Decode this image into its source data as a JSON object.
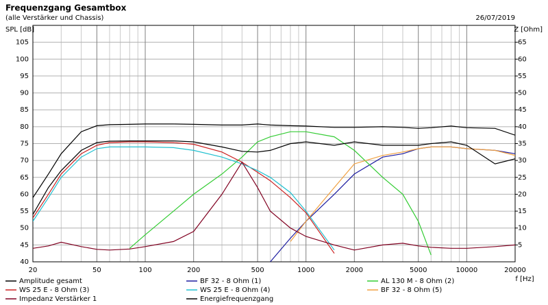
{
  "chart_data": {
    "type": "line",
    "title": "Frequenzgang Gesamtbox",
    "subtitle": "(alle Verstärker und Chassis)",
    "date": "26/07/2019",
    "y_label": "SPL [dB]",
    "y2_label": "Z [Ohm]",
    "x_label": "f [Hz]",
    "log_x": true,
    "grid": true,
    "xlim": [
      20,
      20000
    ],
    "xticks": [
      20,
      50,
      100,
      200,
      500,
      1000,
      2000,
      5000,
      10000,
      20000
    ],
    "xgrid_minor": [
      30,
      40,
      60,
      70,
      80,
      90,
      300,
      400,
      600,
      700,
      800,
      900,
      3000,
      4000,
      6000,
      7000,
      8000,
      9000
    ],
    "ylim": [
      40,
      110
    ],
    "yticks": [
      40,
      45,
      50,
      55,
      60,
      65,
      70,
      75,
      80,
      85,
      90,
      95,
      100,
      105
    ],
    "y2lim": [
      0,
      70
    ],
    "y2ticks": [
      5,
      10,
      15,
      20,
      25,
      30,
      35,
      40,
      45,
      50,
      55,
      60,
      65
    ],
    "x": [
      20,
      25,
      30,
      40,
      50,
      60,
      80,
      100,
      150,
      200,
      300,
      400,
      500,
      600,
      800,
      1000,
      1500,
      2000,
      3000,
      4000,
      5000,
      6000,
      8000,
      10000,
      15000,
      20000
    ],
    "series": [
      {
        "name": "Amplitude gesamt",
        "color": "#000000",
        "values": [
          59,
          66,
          72,
          78.5,
          80.3,
          80.6,
          80.7,
          80.8,
          80.8,
          80.7,
          80.5,
          80.5,
          80.8,
          80.5,
          80.3,
          80.2,
          79.8,
          79.8,
          80,
          79.8,
          79.5,
          79.7,
          80.2,
          79.7,
          79.5,
          77.5
        ]
      },
      {
        "name": "BF 32 - 8 Ohm (1)",
        "color": "#1c1ca0",
        "values": [
          null,
          null,
          null,
          null,
          null,
          null,
          null,
          null,
          null,
          null,
          null,
          null,
          null,
          40,
          47,
          52,
          60,
          66,
          71,
          72,
          73.5,
          74,
          74,
          73.5,
          73,
          72
        ]
      },
      {
        "name": "AL 130 M - 8 Ohm (2)",
        "color": "#33cc33",
        "values": [
          null,
          null,
          null,
          null,
          null,
          null,
          44,
          48,
          55,
          60,
          66,
          71,
          75.5,
          77,
          78.5,
          78.5,
          77,
          73,
          65,
          60,
          52,
          42,
          null,
          null,
          null,
          null
        ]
      },
      {
        "name": "WS 25 E - 8 Ohm (3)",
        "color": "#cc2020",
        "values": [
          53,
          60,
          66,
          72,
          74.5,
          75.3,
          75.5,
          75.5,
          75.3,
          74.8,
          72.5,
          69.5,
          66.5,
          64,
          59,
          54.5,
          42.5,
          null,
          null,
          null,
          null,
          null,
          null,
          null,
          null,
          null
        ]
      },
      {
        "name": "WS 25 E - 8 Ohm (4)",
        "color": "#20c0d0",
        "values": [
          52,
          59,
          65,
          71,
          73.5,
          74,
          74,
          74,
          73.8,
          73,
          71,
          69,
          67,
          65,
          60.5,
          55,
          43.5,
          null,
          null,
          null,
          null,
          null,
          null,
          null,
          null,
          null
        ]
      },
      {
        "name": "BF 32 - 8 Ohm (5)",
        "color": "#f0a040",
        "values": [
          null,
          null,
          null,
          null,
          null,
          null,
          null,
          null,
          null,
          null,
          null,
          null,
          null,
          null,
          46,
          52,
          62,
          69,
          71.5,
          72.5,
          73.5,
          74,
          74,
          73.5,
          73,
          71.5
        ]
      },
      {
        "name": "Impedanz Verstärker 1",
        "color": "#800020",
        "axis": "y2",
        "values": [
          4,
          4.7,
          5.8,
          4.5,
          3.7,
          3.5,
          3.8,
          4.5,
          6,
          9,
          20,
          29.5,
          22,
          15,
          10,
          7.5,
          5,
          3.5,
          5,
          5.5,
          4.7,
          4.3,
          4,
          4,
          4.5,
          5
        ]
      },
      {
        "name": "Energiefrequenzgang",
        "color": "#000000",
        "values": [
          54,
          62,
          67,
          73,
          75.3,
          75.7,
          75.8,
          75.8,
          75.8,
          75.5,
          74,
          72.7,
          72.5,
          73,
          75,
          75.5,
          74.5,
          75.5,
          74.5,
          74.5,
          74.5,
          75,
          75.5,
          74.5,
          69,
          70.5
        ]
      }
    ]
  }
}
